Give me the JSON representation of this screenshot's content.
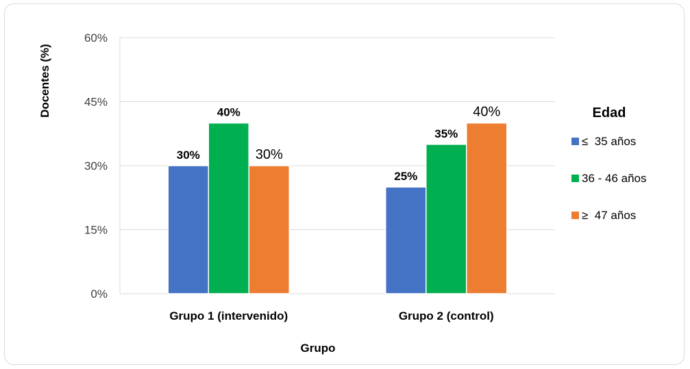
{
  "chart_data": {
    "type": "bar",
    "xlabel": "Grupo",
    "ylabel": "Docentes (%)",
    "ylim": [
      0,
      60
    ],
    "yticks": [
      0,
      15,
      30,
      45,
      60
    ],
    "ytick_labels": [
      "0%",
      "15%",
      "30%",
      "45%",
      "60%"
    ],
    "grid": "horizontal",
    "legend_title": "Edad",
    "legend_position": "right",
    "categories": [
      "Grupo 1 (intervenido)",
      "Grupo 2 (control)"
    ],
    "series": [
      {
        "name": "≤  35 años",
        "color": "#4472c4",
        "values": [
          30,
          25
        ],
        "labels": [
          "30%",
          "25%"
        ],
        "label_bold": true
      },
      {
        "name": "36 - 46 años",
        "color": "#00b050",
        "values": [
          40,
          35
        ],
        "labels": [
          "40%",
          "35%"
        ],
        "label_bold": true
      },
      {
        "name": "≥  47 años",
        "color": "#ed7d31",
        "values": [
          30,
          40
        ],
        "labels": [
          "30%",
          "40%"
        ],
        "label_bold": false
      }
    ]
  }
}
